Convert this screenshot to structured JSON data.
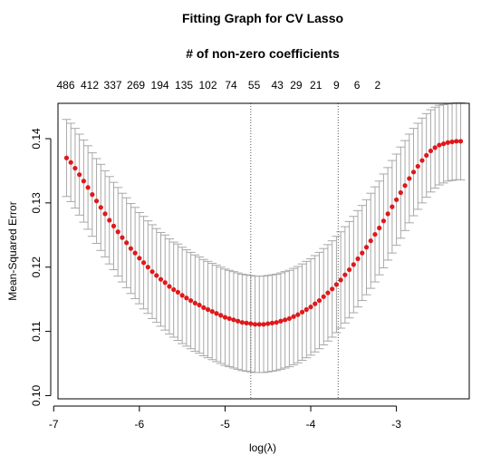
{
  "chart_data": {
    "type": "scatter",
    "title": "Fitting Graph for CV Lasso",
    "subtitle": "# of non-zero coefficients",
    "xlabel": "log(λ)",
    "ylabel": "Mean-Squared Error",
    "xlim": [
      -6.95,
      -2.15
    ],
    "ylim": [
      0.0995,
      0.1455
    ],
    "x_ticks": [
      -7,
      -6,
      -5,
      -4,
      -3
    ],
    "x_tick_labels": [
      "-7",
      "-6",
      "-5",
      "-4",
      "-3"
    ],
    "y_ticks": [
      0.1,
      0.11,
      0.12,
      0.13,
      0.14
    ],
    "y_tick_labels": [
      "0.10",
      "0.11",
      "0.12",
      "0.13",
      "0.14"
    ],
    "top_axis": {
      "positions": [
        -6.86,
        -6.58,
        -6.31,
        -6.04,
        -5.76,
        -5.48,
        -5.2,
        -4.93,
        -4.66,
        -4.39,
        -4.17,
        -3.94,
        -3.7,
        -3.46,
        -3.22
      ],
      "labels": [
        "486",
        "412",
        "337",
        "269",
        "194",
        "135",
        "102",
        "74",
        "55",
        "43",
        "29",
        "21",
        "9",
        "6",
        "2"
      ]
    },
    "vlines": [
      -4.7,
      -3.68
    ],
    "curve_x": [
      -6.85,
      -6.8,
      -6.75,
      -6.7,
      -6.65,
      -6.6,
      -6.55,
      -6.5,
      -6.45,
      -6.4,
      -6.35,
      -6.3,
      -6.25,
      -6.2,
      -6.15,
      -6.1,
      -6.05,
      -6.0,
      -5.95,
      -5.9,
      -5.85,
      -5.8,
      -5.75,
      -5.7,
      -5.65,
      -5.6,
      -5.55,
      -5.5,
      -5.45,
      -5.4,
      -5.35,
      -5.3,
      -5.25,
      -5.2,
      -5.15,
      -5.1,
      -5.05,
      -5.0,
      -4.95,
      -4.9,
      -4.85,
      -4.8,
      -4.75,
      -4.7,
      -4.65,
      -4.6,
      -4.55,
      -4.5,
      -4.45,
      -4.4,
      -4.35,
      -4.3,
      -4.25,
      -4.2,
      -4.15,
      -4.1,
      -4.05,
      -4.0,
      -3.95,
      -3.9,
      -3.85,
      -3.8,
      -3.75,
      -3.7,
      -3.65,
      -3.6,
      -3.55,
      -3.5,
      -3.45,
      -3.4,
      -3.35,
      -3.3,
      -3.25,
      -3.2,
      -3.15,
      -3.1,
      -3.05,
      -3.0,
      -2.95,
      -2.9,
      -2.85,
      -2.8,
      -2.75,
      -2.7,
      -2.65,
      -2.6,
      -2.55,
      -2.5,
      -2.45,
      -2.4,
      -2.35,
      -2.3,
      -2.25
    ],
    "mse": [
      0.137,
      0.1363,
      0.1354,
      0.1344,
      0.1334,
      0.1324,
      0.1313,
      0.1303,
      0.1293,
      0.1283,
      0.1273,
      0.1264,
      0.1255,
      0.1246,
      0.1238,
      0.1229,
      0.1222,
      0.1214,
      0.1207,
      0.12,
      0.1193,
      0.1187,
      0.1181,
      0.1176,
      0.117,
      0.1165,
      0.1161,
      0.1156,
      0.1152,
      0.1148,
      0.1144,
      0.1141,
      0.1137,
      0.1134,
      0.1131,
      0.1128,
      0.1125,
      0.1122,
      0.112,
      0.1118,
      0.1116,
      0.1114,
      0.1113,
      0.1112,
      0.1111,
      0.1111,
      0.1111,
      0.1112,
      0.1113,
      0.1114,
      0.1116,
      0.1118,
      0.112,
      0.1123,
      0.1126,
      0.113,
      0.1134,
      0.1138,
      0.1143,
      0.1148,
      0.1154,
      0.116,
      0.1166,
      0.1173,
      0.118,
      0.1188,
      0.1196,
      0.1204,
      0.1213,
      0.1222,
      0.1231,
      0.1241,
      0.1251,
      0.1261,
      0.1272,
      0.1283,
      0.1294,
      0.1305,
      0.1316,
      0.1327,
      0.1338,
      0.1348,
      0.1357,
      0.1366,
      0.1374,
      0.1381,
      0.1386,
      0.139,
      0.1392,
      0.1394,
      0.1395,
      0.1396,
      0.1396
    ],
    "se": [
      0.006,
      0.0061,
      0.0062,
      0.0063,
      0.0064,
      0.0065,
      0.0065,
      0.0066,
      0.0067,
      0.0067,
      0.0068,
      0.0068,
      0.0069,
      0.0069,
      0.007,
      0.007,
      0.0071,
      0.0071,
      0.0072,
      0.0072,
      0.0073,
      0.0073,
      0.0073,
      0.0074,
      0.0074,
      0.0074,
      0.0075,
      0.0075,
      0.0075,
      0.0075,
      0.0075,
      0.0075,
      0.0075,
      0.0075,
      0.0075,
      0.0075,
      0.0075,
      0.0075,
      0.0075,
      0.0075,
      0.0075,
      0.0075,
      0.0075,
      0.0075,
      0.0075,
      0.0075,
      0.0075,
      0.0075,
      0.0075,
      0.0075,
      0.0075,
      0.0075,
      0.0075,
      0.0075,
      0.0075,
      0.0075,
      0.0075,
      0.0075,
      0.0075,
      0.0075,
      0.0075,
      0.0075,
      0.0075,
      0.0075,
      0.0075,
      0.0075,
      0.0075,
      0.0075,
      0.0075,
      0.0074,
      0.0074,
      0.0074,
      0.0074,
      0.0073,
      0.0073,
      0.0072,
      0.0072,
      0.0071,
      0.0071,
      0.007,
      0.0069,
      0.0068,
      0.0067,
      0.0066,
      0.0065,
      0.0064,
      0.0063,
      0.0062,
      0.0061,
      0.006,
      0.006,
      0.006,
      0.006
    ],
    "colors": {
      "points": "#e0181b",
      "errorbars": "#a8a8a8",
      "axes": "#000000",
      "vlines": "#555555"
    }
  }
}
